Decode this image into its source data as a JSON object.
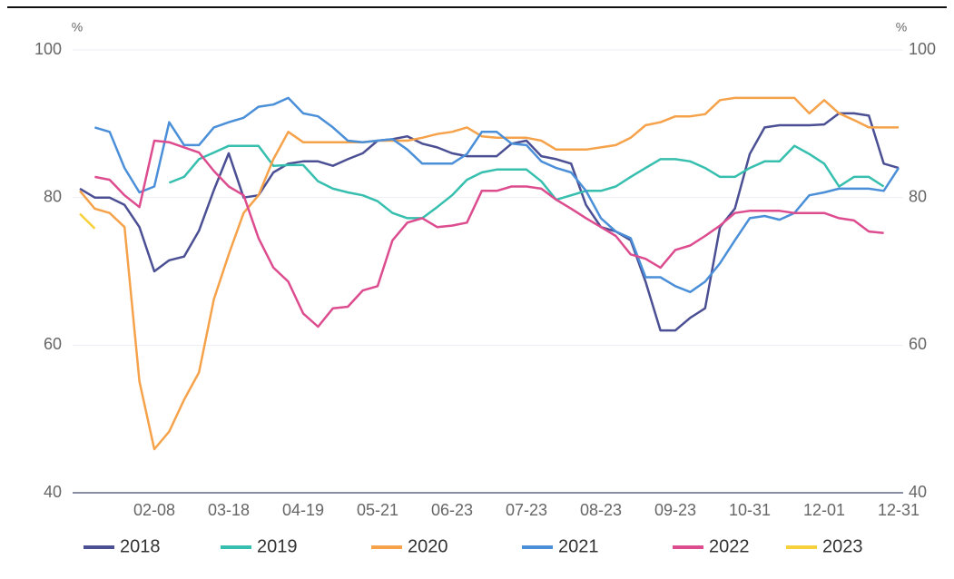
{
  "chart_data": {
    "type": "line",
    "y_unit": "%",
    "categories": [
      null,
      null,
      null,
      null,
      null,
      "02-08",
      null,
      null,
      null,
      null,
      "03-18",
      null,
      null,
      null,
      null,
      "04-19",
      null,
      null,
      null,
      null,
      "05-21",
      null,
      null,
      null,
      null,
      "06-23",
      null,
      null,
      null,
      null,
      "07-23",
      null,
      null,
      null,
      null,
      "08-23",
      null,
      null,
      null,
      null,
      "09-23",
      null,
      null,
      null,
      null,
      "10-31",
      null,
      null,
      null,
      null,
      "12-01",
      null,
      null,
      null,
      null,
      "12-31"
    ],
    "series": [
      {
        "name": "2018",
        "color": "#4b4f93",
        "values": [
          81.2,
          80,
          80,
          79,
          76,
          70,
          71.5,
          72,
          75.5,
          81,
          86,
          80,
          80.3,
          83.4,
          84.6,
          84.9,
          84.9,
          84.3,
          85.2,
          86,
          87.7,
          87.9,
          88.3,
          87.3,
          86.8,
          86,
          85.6,
          85.6,
          85.6,
          87.3,
          87.7,
          85.6,
          85.2,
          84.6,
          79,
          76,
          75.4,
          74.2,
          68.6,
          62,
          62,
          63.7,
          65,
          76,
          78.5,
          85.9,
          89.5,
          89.8,
          89.8,
          89.8,
          89.9,
          91.4,
          91.4,
          91.1,
          84.6,
          84
        ]
      },
      {
        "name": "2019",
        "color": "#36bfae",
        "values": [
          null,
          null,
          null,
          null,
          null,
          null,
          82,
          82.8,
          85.2,
          86.1,
          87,
          87,
          87,
          84.3,
          84.4,
          84.4,
          82.2,
          81.2,
          80.7,
          80.3,
          79.5,
          77.9,
          77.2,
          77.2,
          78.7,
          80.3,
          82.4,
          83.4,
          83.8,
          83.8,
          83.8,
          82.2,
          79.7,
          80.3,
          80.9,
          80.9,
          81.5,
          82.8,
          84,
          85.2,
          85.2,
          84.9,
          84,
          82.8,
          82.8,
          84,
          84.9,
          84.9,
          87,
          85.9,
          84.6,
          81.5,
          82.8,
          82.8,
          81.5,
          null
        ]
      },
      {
        "name": "2020",
        "color": "#f5a24b",
        "values": [
          80.9,
          78.5,
          77.9,
          76,
          55.1,
          45.9,
          48.3,
          52.6,
          56.3,
          66.2,
          72.3,
          77.9,
          80.3,
          85.2,
          88.9,
          87.5,
          87.5,
          87.5,
          87.5,
          87.5,
          87.7,
          87.7,
          87.7,
          88.1,
          88.6,
          88.9,
          89.5,
          88.3,
          88.1,
          88.1,
          88.1,
          87.7,
          86.5,
          86.5,
          86.5,
          86.8,
          87.1,
          88.1,
          89.8,
          90.2,
          91,
          91,
          91.3,
          93.2,
          93.5,
          93.5,
          93.5,
          93.5,
          93.5,
          91.4,
          93.2,
          91.4,
          90.5,
          89.5,
          89.5,
          89.5
        ]
      },
      {
        "name": "2021",
        "color": "#4a8fd8",
        "values": [
          null,
          89.5,
          88.9,
          84,
          80.7,
          81.5,
          90.2,
          87.1,
          87.1,
          89.5,
          90.2,
          90.8,
          92.3,
          92.6,
          93.5,
          91.4,
          91,
          89.5,
          87.7,
          87.5,
          87.7,
          87.9,
          86.5,
          84.6,
          84.6,
          84.6,
          85.9,
          88.9,
          88.9,
          87.3,
          87.1,
          84.9,
          84,
          83.4,
          80.9,
          77.2,
          75.4,
          74.5,
          69.2,
          69.2,
          68,
          67.2,
          68.6,
          71.1,
          74.2,
          77.2,
          77.5,
          77,
          77.9,
          80.3,
          80.7,
          81.2,
          81.2,
          81.2,
          80.9,
          84
        ]
      },
      {
        "name": "2022",
        "color": "#dc4c8e",
        "values": [
          null,
          82.8,
          82.4,
          80.3,
          78.7,
          87.7,
          87.5,
          86.8,
          86.1,
          83.6,
          81.5,
          80.3,
          74.5,
          70.5,
          68.6,
          64.3,
          62.5,
          65,
          65.2,
          67.4,
          68,
          74.2,
          76.6,
          77.2,
          76,
          76.2,
          76.6,
          80.9,
          80.9,
          81.5,
          81.5,
          81.2,
          79.7,
          78.5,
          77.2,
          76,
          74.8,
          72.3,
          71.7,
          70.5,
          72.9,
          73.5,
          74.8,
          76.2,
          77.9,
          78.2,
          78.2,
          78.2,
          77.9,
          77.9,
          77.9,
          77.2,
          76.9,
          75.4,
          75.2,
          null
        ]
      },
      {
        "name": "2023",
        "color": "#f7d13b",
        "values": [
          77.8,
          75.8,
          null,
          null,
          null,
          null,
          null,
          null,
          null,
          null,
          null,
          null,
          null,
          null,
          null,
          null,
          null,
          null,
          null,
          null,
          null,
          null,
          null,
          null,
          null,
          null,
          null,
          null,
          null,
          null,
          null,
          null,
          null,
          null,
          null,
          null,
          null,
          null,
          null,
          null,
          null,
          null,
          null,
          null,
          null,
          null,
          null,
          null,
          null,
          null,
          null,
          null,
          null,
          null,
          null,
          null
        ]
      }
    ],
    "ylim": [
      40,
      100
    ],
    "yticks": [
      40,
      60,
      80,
      100
    ],
    "y2lim": [
      40,
      100
    ],
    "y2ticks": [
      40,
      60,
      80,
      100
    ],
    "grid": true,
    "legend": "bottom"
  }
}
